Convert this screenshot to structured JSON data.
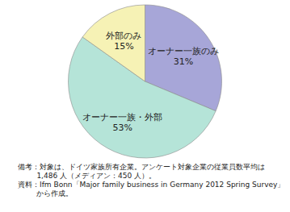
{
  "chart_data": {
    "type": "pie",
    "categories": [
      "オーナー一族のみ",
      "オーナー一族・外部",
      "外部のみ"
    ],
    "values": [
      31,
      53,
      15
    ],
    "value_labels": [
      "31%",
      "53%",
      "15%"
    ],
    "colors": [
      "#a7a6d8",
      "#b5e4d8",
      "#f6f2b5"
    ],
    "data_labels": true,
    "annotations": [
      "備考：対象は、ドイツ家族所有企業。アンケート対象企業の従業員数平均は 1,486 人（メディアン：450 人）。",
      "資料：Ifm Bonn「Major family business in Germany 2012 Spring Survey」から作成。"
    ]
  }
}
